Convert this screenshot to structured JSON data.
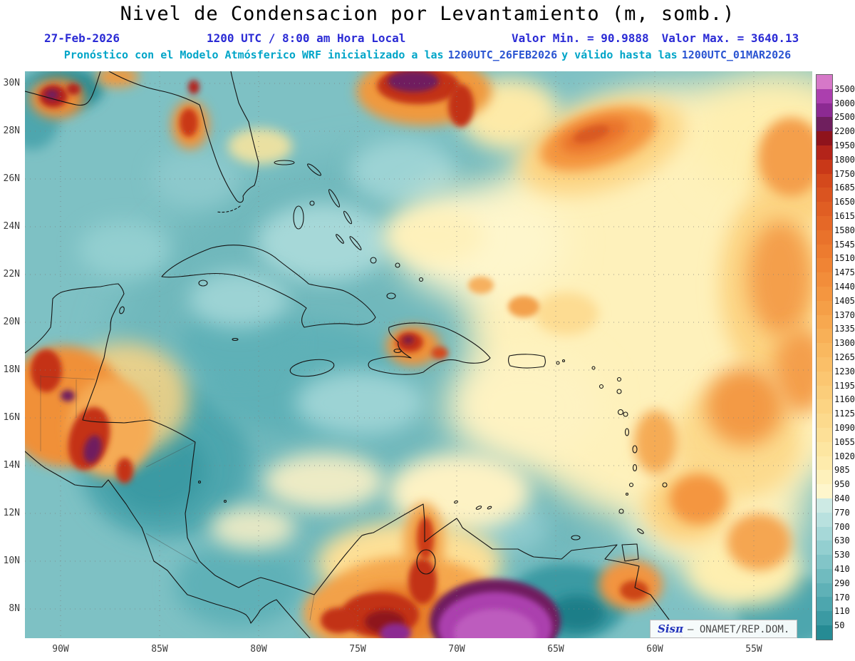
{
  "title": "Nivel de Condensacion por Levantamiento (m, somb.)",
  "header": {
    "date": "27-Feb-2026",
    "time": "1200 UTC / 8:00 am Hora Local",
    "min": "Valor Min. = 90.9888",
    "max": "Valor Max. = 3640.13"
  },
  "forecast": {
    "prefix": "Pronóstico con el Modelo Atmósferico WRF inicializado a las",
    "init_date": "1200UTC_26FEB2026",
    "middle": "y válido hasta las",
    "valid_date": "1200UTC_01MAR2026"
  },
  "axes": {
    "lat": [
      "30N",
      "28N",
      "26N",
      "24N",
      "22N",
      "20N",
      "18N",
      "16N",
      "14N",
      "12N",
      "10N",
      "8N"
    ],
    "lon": [
      "90W",
      "85W",
      "80W",
      "75W",
      "70W",
      "65W",
      "60W",
      "55W"
    ]
  },
  "colorbar": {
    "unit": "m",
    "labels": [
      "3500",
      "3000",
      "2500",
      "2200",
      "1950",
      "1800",
      "1750",
      "1685",
      "1650",
      "1615",
      "1580",
      "1545",
      "1510",
      "1475",
      "1440",
      "1405",
      "1370",
      "1335",
      "1300",
      "1265",
      "1230",
      "1195",
      "1160",
      "1125",
      "1090",
      "1055",
      "1020",
      "985",
      "950",
      "840",
      "770",
      "700",
      "630",
      "530",
      "410",
      "290",
      "170",
      "110",
      "50"
    ],
    "colors": [
      "#d678c8",
      "#ab3fae",
      "#8c2a92",
      "#6f1f5e",
      "#8f131c",
      "#b3241a",
      "#c93818",
      "#d4491c",
      "#da5420",
      "#e05e23",
      "#e56827",
      "#e9722b",
      "#ed7b2f",
      "#f08434",
      "#f28d3a",
      "#f49640",
      "#f59f47",
      "#f7a84f",
      "#f8b057",
      "#f9b85f",
      "#fabf68",
      "#fbc671",
      "#fbcd7a",
      "#fcd483",
      "#fcda8d",
      "#fde097",
      "#fde6a1",
      "#feebac",
      "#fef1bb",
      "#fef6cc",
      "#cdeae4",
      "#b9e1df",
      "#a6d8d8",
      "#93cfd0",
      "#82c5c8",
      "#70bbbf",
      "#5fb1b7",
      "#4da6ae",
      "#3b9aa3",
      "#268b94"
    ]
  },
  "watermark": {
    "brand": "Sisπ",
    "credit": "– ONAMET/REP.DOM."
  },
  "colors": {
    "header_blue": "#2b2bd5",
    "forecast_cyan": "#00a5c8",
    "forecast_date_blue": "#2b55d2",
    "map_base_teal": "#7ec1c4"
  }
}
